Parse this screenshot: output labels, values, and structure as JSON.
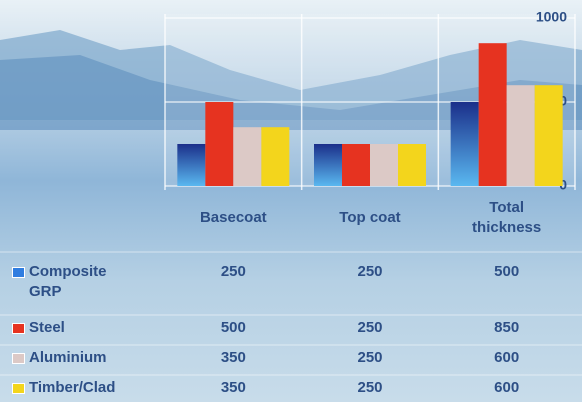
{
  "chart_data": {
    "type": "bar",
    "categories": [
      "Basecoat",
      "Top coat",
      "Total thickness"
    ],
    "series": [
      {
        "name": "Composite GRP",
        "color": "#2f7de0",
        "values": [
          250,
          250,
          500
        ]
      },
      {
        "name": "Steel",
        "color": "#e63320",
        "values": [
          500,
          250,
          850
        ]
      },
      {
        "name": "Aluminium",
        "color": "#dcc9c6",
        "values": [
          350,
          250,
          600
        ]
      },
      {
        "name": "Timber/Clad",
        "color": "#f3d51c",
        "values": [
          350,
          250,
          600
        ]
      }
    ],
    "ylim": [
      0,
      1000
    ],
    "yticks": [
      0,
      500,
      1000
    ],
    "grid": true
  }
}
